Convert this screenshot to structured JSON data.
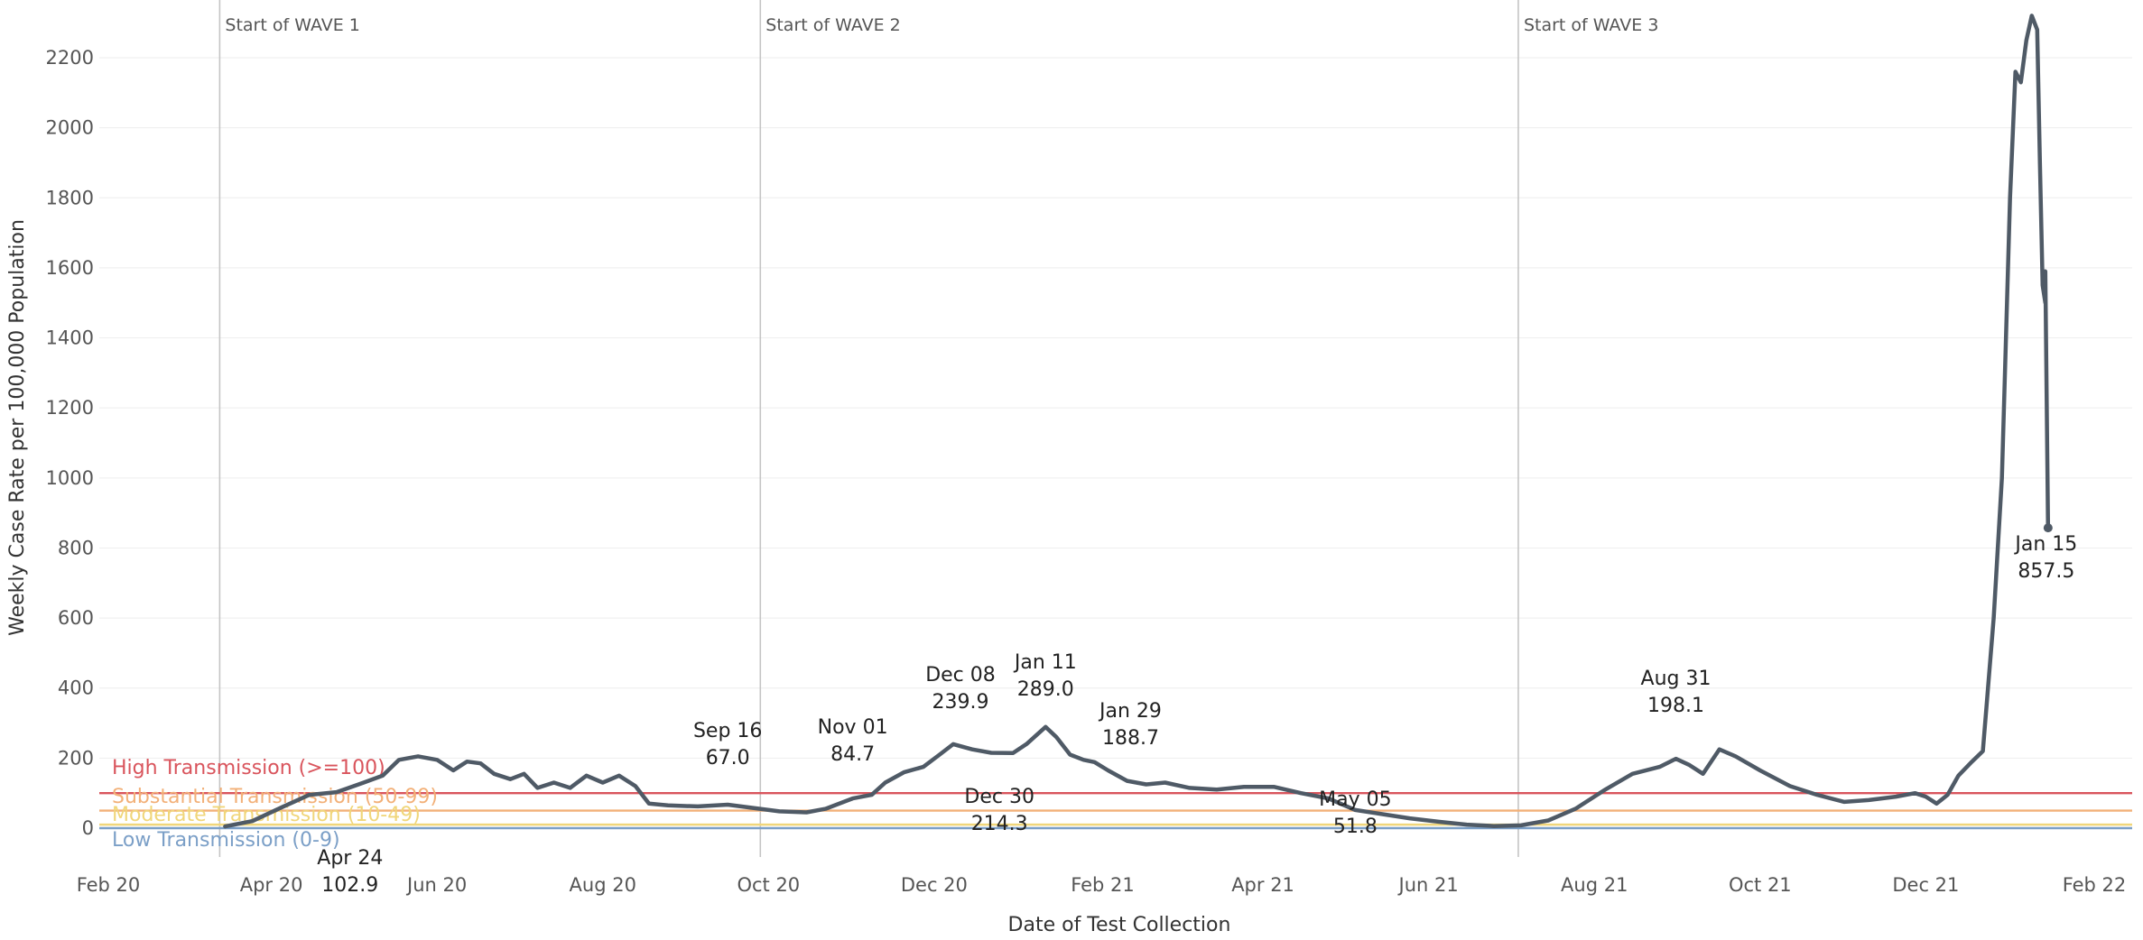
{
  "chart_data": {
    "type": "line",
    "xlabel": "Date of Test Collection",
    "ylabel": "Weekly Case Rate per 100,000 Population",
    "ylim": [
      0,
      2350
    ],
    "xlim": [
      "2020-02-01",
      "2022-02-01"
    ],
    "grid": "horizontal",
    "y_ticks": [
      "0",
      "200",
      "400",
      "600",
      "800",
      "1000",
      "1200",
      "1400",
      "1600",
      "1800",
      "2000",
      "2200"
    ],
    "x_ticks": [
      {
        "label": "Feb 20",
        "date": "2020-02-01"
      },
      {
        "label": "Apr 20",
        "date": "2020-04-01"
      },
      {
        "label": "Jun 20",
        "date": "2020-06-01"
      },
      {
        "label": "Aug 20",
        "date": "2020-08-01"
      },
      {
        "label": "Oct 20",
        "date": "2020-10-01"
      },
      {
        "label": "Dec 20",
        "date": "2020-12-01"
      },
      {
        "label": "Feb 21",
        "date": "2021-02-01"
      },
      {
        "label": "Apr 21",
        "date": "2021-04-01"
      },
      {
        "label": "Jun 21",
        "date": "2021-06-01"
      },
      {
        "label": "Aug 21",
        "date": "2021-08-01"
      },
      {
        "label": "Oct 21",
        "date": "2021-10-01"
      },
      {
        "label": "Dec 21",
        "date": "2021-12-01"
      },
      {
        "label": "Feb 22",
        "date": "2022-02-01"
      }
    ],
    "reference_lines": [
      {
        "label": "Start of WAVE 1",
        "date": "2020-03-13"
      },
      {
        "label": "Start of WAVE 2",
        "date": "2020-09-28"
      },
      {
        "label": "Start of WAVE 3",
        "date": "2021-07-04"
      }
    ],
    "thresholds": [
      {
        "label": "High Transmission (>=100)",
        "value": 100,
        "color": "#d9545c"
      },
      {
        "label": "Substantial Transmission (50-99)",
        "value": 50,
        "color": "#f2b078"
      },
      {
        "label": "Moderate Transmission (10-49)",
        "value": 10,
        "color": "#f0d67a"
      },
      {
        "label": "Low Transmission (0-9)",
        "value": 0,
        "color": "#7b9fc7"
      }
    ],
    "series": [
      {
        "color": "#4f5a66",
        "points": [
          [
            "2020-03-15",
            5
          ],
          [
            "2020-03-25",
            20
          ],
          [
            "2020-04-05",
            60
          ],
          [
            "2020-04-15",
            95
          ],
          [
            "2020-04-25",
            102.9
          ],
          [
            "2020-05-05",
            130
          ],
          [
            "2020-05-12",
            150
          ],
          [
            "2020-05-18",
            195
          ],
          [
            "2020-05-25",
            205
          ],
          [
            "2020-06-01",
            195
          ],
          [
            "2020-06-07",
            165
          ],
          [
            "2020-06-12",
            190
          ],
          [
            "2020-06-17",
            185
          ],
          [
            "2020-06-22",
            155
          ],
          [
            "2020-06-28",
            140
          ],
          [
            "2020-07-03",
            155
          ],
          [
            "2020-07-08",
            115
          ],
          [
            "2020-07-14",
            130
          ],
          [
            "2020-07-20",
            115
          ],
          [
            "2020-07-26",
            150
          ],
          [
            "2020-08-01",
            130
          ],
          [
            "2020-08-07",
            150
          ],
          [
            "2020-08-13",
            120
          ],
          [
            "2020-08-18",
            70
          ],
          [
            "2020-08-25",
            65
          ],
          [
            "2020-09-05",
            62
          ],
          [
            "2020-09-16",
            67.0
          ],
          [
            "2020-09-25",
            58
          ],
          [
            "2020-10-05",
            48
          ],
          [
            "2020-10-15",
            45
          ],
          [
            "2020-10-22",
            55
          ],
          [
            "2020-11-01",
            84.7
          ],
          [
            "2020-11-08",
            95
          ],
          [
            "2020-11-13",
            130
          ],
          [
            "2020-11-20",
            160
          ],
          [
            "2020-11-27",
            175
          ],
          [
            "2020-12-03",
            210
          ],
          [
            "2020-12-08",
            239.9
          ],
          [
            "2020-12-15",
            225
          ],
          [
            "2020-12-22",
            215
          ],
          [
            "2020-12-30",
            214.3
          ],
          [
            "2021-01-04",
            240
          ],
          [
            "2021-01-11",
            289.0
          ],
          [
            "2021-01-15",
            260
          ],
          [
            "2021-01-20",
            210
          ],
          [
            "2021-01-25",
            195
          ],
          [
            "2021-01-29",
            188.7
          ],
          [
            "2021-02-03",
            165
          ],
          [
            "2021-02-10",
            135
          ],
          [
            "2021-02-17",
            125
          ],
          [
            "2021-02-24",
            130
          ],
          [
            "2021-03-05",
            115
          ],
          [
            "2021-03-15",
            110
          ],
          [
            "2021-03-25",
            118
          ],
          [
            "2021-04-05",
            118
          ],
          [
            "2021-04-15",
            100
          ],
          [
            "2021-04-25",
            85
          ],
          [
            "2021-05-05",
            51.8
          ],
          [
            "2021-05-15",
            40
          ],
          [
            "2021-05-25",
            28
          ],
          [
            "2021-06-05",
            18
          ],
          [
            "2021-06-15",
            10
          ],
          [
            "2021-06-25",
            6
          ],
          [
            "2021-07-05",
            8
          ],
          [
            "2021-07-15",
            22
          ],
          [
            "2021-07-25",
            55
          ],
          [
            "2021-08-05",
            110
          ],
          [
            "2021-08-15",
            155
          ],
          [
            "2021-08-25",
            175
          ],
          [
            "2021-08-31",
            198.1
          ],
          [
            "2021-09-05",
            180
          ],
          [
            "2021-09-10",
            155
          ],
          [
            "2021-09-16",
            225
          ],
          [
            "2021-09-22",
            205
          ],
          [
            "2021-10-01",
            165
          ],
          [
            "2021-10-12",
            120
          ],
          [
            "2021-10-22",
            95
          ],
          [
            "2021-11-01",
            75
          ],
          [
            "2021-11-10",
            80
          ],
          [
            "2021-11-20",
            90
          ],
          [
            "2021-11-27",
            100
          ],
          [
            "2021-12-01",
            90
          ],
          [
            "2021-12-05",
            70
          ],
          [
            "2021-12-09",
            95
          ],
          [
            "2021-12-13",
            150
          ],
          [
            "2021-12-18",
            190
          ],
          [
            "2021-12-22",
            220
          ],
          [
            "2021-12-26",
            600
          ],
          [
            "2021-12-29",
            1000
          ],
          [
            "2022-01-01",
            1800
          ],
          [
            "2022-01-03",
            2160
          ],
          [
            "2022-01-05",
            2130
          ],
          [
            "2022-01-07",
            2250
          ],
          [
            "2022-01-09",
            2320
          ],
          [
            "2022-01-11",
            2280
          ],
          [
            "2022-01-12",
            1900
          ],
          [
            "2022-01-13",
            1550
          ],
          [
            "2022-01-14",
            1500
          ],
          [
            "2022-01-14",
            1590
          ],
          [
            "2022-01-15",
            857.5
          ]
        ]
      }
    ],
    "annotations": [
      {
        "date": "Sep 16",
        "value": "67.0",
        "x": "2020-09-16",
        "y": 67.0
      },
      {
        "date": "Nov 01",
        "value": "84.7",
        "x": "2020-11-01",
        "y": 84.7
      },
      {
        "date": "Dec 08",
        "value": "239.9",
        "x": "2020-12-08",
        "y": 239.9
      },
      {
        "date": "Jan 11",
        "value": "289.0",
        "x": "2021-01-11",
        "y": 289.0
      },
      {
        "date": "Jan 29",
        "value": "188.7",
        "x": "2021-01-29",
        "y": 188.7
      },
      {
        "date": "Dec 30",
        "value": "214.3",
        "x": "2020-12-30",
        "y": 214.3
      },
      {
        "date": "May 05",
        "value": "51.8",
        "x": "2021-05-05",
        "y": 51.8
      },
      {
        "date": "Aug 31",
        "value": "198.1",
        "x": "2021-08-31",
        "y": 198.1
      },
      {
        "date": "Jan 15",
        "value": "857.5",
        "x": "2022-01-15",
        "y": 857.5
      },
      {
        "date": "Apr 24",
        "value": "102.9",
        "x": "2020-04-24",
        "y": 102.9
      }
    ]
  }
}
